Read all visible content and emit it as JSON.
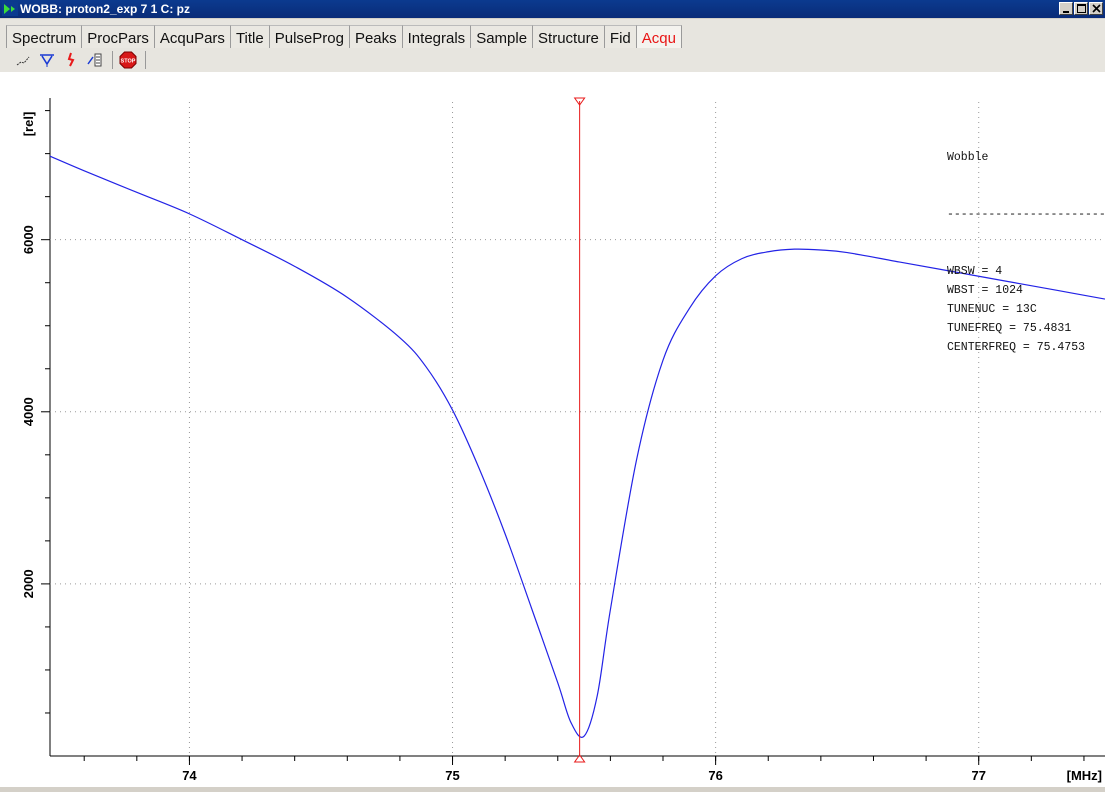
{
  "window": {
    "title": "WOBB: proton2_exp  7  1  C: pz",
    "buttons": [
      "minimize",
      "maximize",
      "close"
    ]
  },
  "tabs": [
    {
      "label": "Spectrum",
      "active": false
    },
    {
      "label": "ProcPars",
      "active": false
    },
    {
      "label": "AcquPars",
      "active": false
    },
    {
      "label": "Title",
      "active": false
    },
    {
      "label": "PulseProg",
      "active": false
    },
    {
      "label": "Peaks",
      "active": false
    },
    {
      "label": "Integrals",
      "active": false
    },
    {
      "label": "Sample",
      "active": false
    },
    {
      "label": "Structure",
      "active": false
    },
    {
      "label": "Fid",
      "active": false
    },
    {
      "label": "Acqu",
      "active": true
    }
  ],
  "toolbar": {
    "icons": [
      "line-mode-icon",
      "cursor-marker-icon",
      "red-arrow-icon",
      "list-icon",
      "stop-icon"
    ]
  },
  "info": {
    "title": "Wobble",
    "separator": "-------------------------",
    "lines": [
      "WBSW = 4",
      "WBST = 1024",
      "TUNENUC = 13C",
      "TUNEFREQ = 75.4831",
      "CENTERFREQ = 75.4753"
    ]
  },
  "colors": {
    "curve": "#2323e6",
    "marker": "#e81a1a",
    "active_tab": "#e81515",
    "titlebar": "#0a2c78"
  },
  "chart_data": {
    "type": "line",
    "xlabel": "[MHz]",
    "ylabel": "[rel]",
    "xlim": [
      73.47,
      77.48
    ],
    "ylim": [
      0,
      7600
    ],
    "xticks": [
      74,
      75,
      76,
      77
    ],
    "yticks": [
      2000,
      4000,
      6000
    ],
    "grid": true,
    "marker_x": 75.4831,
    "series": [
      {
        "x": [
          73.47,
          73.6,
          73.8,
          74.0,
          74.2,
          74.4,
          74.6,
          74.8,
          74.9,
          75.0,
          75.1,
          75.2,
          75.3,
          75.4,
          75.45,
          75.5,
          75.55,
          75.6,
          75.7,
          75.8,
          75.9,
          76.0,
          76.1,
          76.2,
          76.3,
          76.4,
          76.5,
          76.7,
          76.9,
          77.1,
          77.3,
          77.48
        ],
        "y": [
          6970,
          6800,
          6550,
          6300,
          6000,
          5690,
          5330,
          4860,
          4520,
          4020,
          3350,
          2580,
          1720,
          850,
          390,
          230,
          700,
          1700,
          3450,
          4600,
          5200,
          5580,
          5780,
          5860,
          5890,
          5880,
          5850,
          5740,
          5630,
          5520,
          5410,
          5310
        ]
      }
    ]
  }
}
